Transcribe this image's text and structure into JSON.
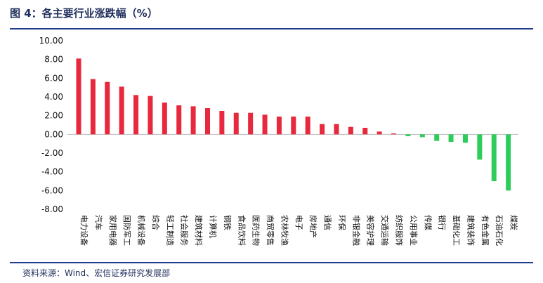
{
  "figure": {
    "title": "图 4：各主要行业涨跌幅（%）",
    "source": "资料来源：Wind、宏信证券研究发展部"
  },
  "colors": {
    "positive": "#e8283c",
    "negative": "#2ecc5a",
    "rule": "#1f3c8c"
  },
  "chart_data": {
    "type": "bar",
    "title": "各主要行业涨跌幅（%）",
    "xlabel": "",
    "ylabel": "",
    "ylim": [
      -8,
      10
    ],
    "yticks": [
      "10.00",
      "8.00",
      "6.00",
      "4.00",
      "2.00",
      "0.00",
      "-2.00",
      "-4.00",
      "-6.00",
      "-8.00"
    ],
    "grid": false,
    "categories": [
      "电力设备",
      "汽车",
      "家用电器",
      "国防军工",
      "机械设备",
      "综合",
      "轻工制造",
      "社会服务",
      "建筑材料",
      "计算机",
      "钢铁",
      "食品饮料",
      "医药生物",
      "商贸零售",
      "农林牧渔",
      "电子",
      "房地产",
      "通信",
      "环保",
      "非银金融",
      "美容护理",
      "交通运输",
      "纺织服饰",
      "公用事业",
      "传媒",
      "银行",
      "基础化工",
      "建筑装饰",
      "有色金属",
      "石油石化",
      "煤炭"
    ],
    "values": [
      8.1,
      5.9,
      5.6,
      5.1,
      4.2,
      4.1,
      3.4,
      3.1,
      3.0,
      2.8,
      2.5,
      2.3,
      2.3,
      2.1,
      1.9,
      1.9,
      1.9,
      1.1,
      1.1,
      0.8,
      0.7,
      0.3,
      0.1,
      -0.2,
      -0.3,
      -0.7,
      -0.8,
      -0.9,
      -2.7,
      -5.0,
      -6.0
    ]
  }
}
